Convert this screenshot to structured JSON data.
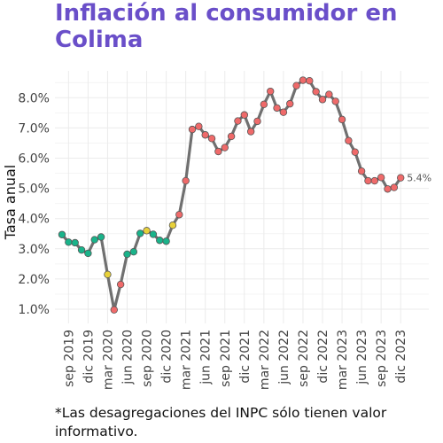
{
  "title": "Inflación al consumidor en Colima",
  "footnote": "*Las desagregaciones del INPC sólo tienen valor informativo.",
  "chart_data": {
    "type": "line",
    "ylabel": "Tasa anual",
    "xlabel": "",
    "ylim": [
      0.8,
      9.0
    ],
    "yticks": [
      1,
      2,
      3,
      4,
      5,
      6,
      7,
      8
    ],
    "ytick_labels": [
      "1.0%",
      "2.0%",
      "3.0%",
      "4.0%",
      "5.0%",
      "6.0%",
      "7.0%",
      "8.0%"
    ],
    "xticks": [
      "sep 2019",
      "dic 2019",
      "mar 2020",
      "jun 2020",
      "sep 2020",
      "dic 2020",
      "mar 2021",
      "jun 2021",
      "sep 2021",
      "dic 2021",
      "mar 2022",
      "jun 2022",
      "sep 2022",
      "dic 2022",
      "mar 2023",
      "jun 2023",
      "sep 2023",
      "dic 2023"
    ],
    "xtick_index": [
      1,
      4,
      7,
      10,
      13,
      16,
      19,
      22,
      25,
      28,
      31,
      34,
      37,
      40,
      43,
      46,
      49,
      52
    ],
    "grid": true,
    "line_color": "#707070",
    "category_colors": {
      "green": "#1ab38a",
      "yellow": "#e8d13a",
      "red": "#ef6a6a"
    },
    "end_label": "5.4%",
    "series": [
      {
        "x": [
          "ago 2019",
          "sep 2019",
          "oct 2019",
          "nov 2019",
          "dic 2019",
          "ene 2020",
          "feb 2020",
          "mar 2020",
          "abr 2020",
          "may 2020",
          "jun 2020",
          "jul 2020",
          "ago 2020",
          "sep 2020",
          "oct 2020",
          "nov 2020",
          "dic 2020",
          "ene 2021",
          "feb 2021",
          "mar 2021",
          "abr 2021",
          "may 2021",
          "jun 2021",
          "jul 2021",
          "ago 2021",
          "sep 2021",
          "oct 2021",
          "nov 2021",
          "dic 2021",
          "ene 2022",
          "feb 2022",
          "mar 2022",
          "abr 2022",
          "may 2022",
          "jun 2022",
          "jul 2022",
          "ago 2022",
          "sep 2022",
          "oct 2022",
          "nov 2022",
          "dic 2022",
          "ene 2023",
          "feb 2023",
          "mar 2023",
          "abr 2023",
          "may 2023",
          "jun 2023",
          "jul 2023",
          "ago 2023",
          "sep 2023",
          "oct 2023",
          "nov 2023",
          "dic 2023"
        ],
        "values": [
          3.47,
          3.22,
          3.2,
          2.96,
          2.85,
          3.3,
          3.39,
          2.15,
          0.98,
          1.82,
          2.82,
          2.9,
          3.51,
          3.6,
          3.48,
          3.28,
          3.25,
          3.78,
          4.13,
          5.25,
          6.95,
          7.05,
          6.77,
          6.65,
          6.22,
          6.35,
          6.72,
          7.23,
          7.43,
          6.88,
          7.22,
          7.78,
          8.21,
          7.66,
          7.52,
          7.8,
          8.4,
          8.58,
          8.56,
          8.2,
          7.94,
          8.11,
          7.88,
          7.28,
          6.58,
          6.2,
          5.57,
          5.25,
          5.25,
          5.36,
          4.98,
          5.03,
          5.35
        ],
        "colors": [
          "green",
          "green",
          "green",
          "green",
          "green",
          "green",
          "green",
          "yellow",
          "red",
          "red",
          "green",
          "green",
          "green",
          "yellow",
          "green",
          "green",
          "green",
          "yellow",
          "red",
          "red",
          "red",
          "red",
          "red",
          "red",
          "red",
          "red",
          "red",
          "red",
          "red",
          "red",
          "red",
          "red",
          "red",
          "red",
          "red",
          "red",
          "red",
          "red",
          "red",
          "red",
          "red",
          "red",
          "red",
          "red",
          "red",
          "red",
          "red",
          "red",
          "red",
          "red",
          "red",
          "red",
          "red"
        ]
      }
    ]
  }
}
